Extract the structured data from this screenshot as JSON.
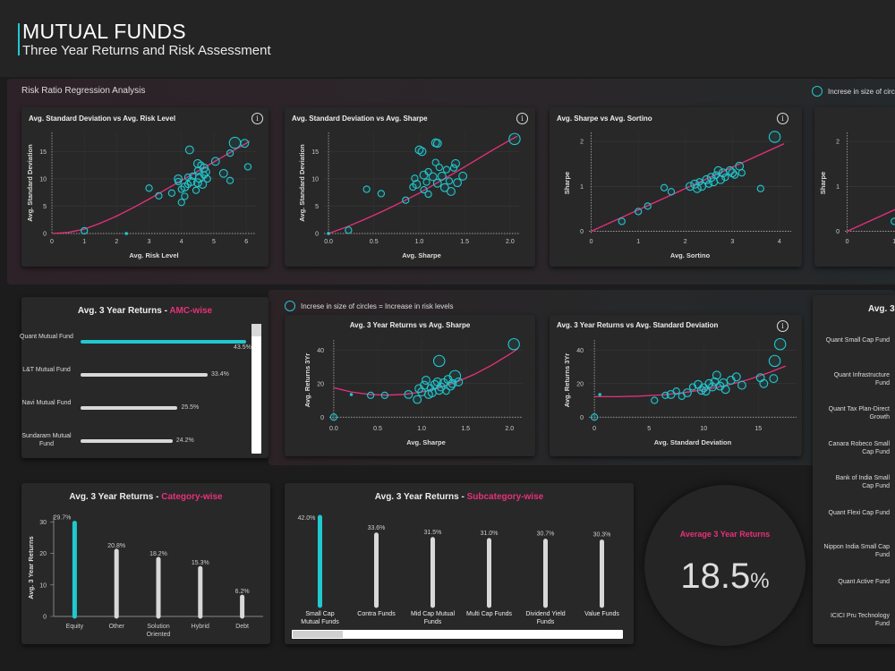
{
  "header": {
    "title": "MUTUAL FUNDS",
    "subtitle": "Three Year Returns and Risk Assessment"
  },
  "section_label": "Risk Ratio Regression Analysis",
  "legend_top": "Increse in size of circles",
  "legend_mid": "Increse in size of circles = Increase in risk levels",
  "colors": {
    "accent": "#20c8d0",
    "pink": "#e8307a",
    "bar": "#d8d8d8",
    "card": "#282828"
  },
  "icons": {
    "info": "info-icon"
  },
  "info_glyph": "i",
  "amc": {
    "title_prefix": "Avg. 3 Year Returns - ",
    "title_suffix": "AMC-wise",
    "rows": [
      {
        "label": "Quant Mutual Fund",
        "value": 43.5,
        "value_label": "43.5%"
      },
      {
        "label": "L&T Mutual Fund",
        "value": 33.4,
        "value_label": "33.4%"
      },
      {
        "label": "Navi Mutual Fund",
        "value": 25.5,
        "value_label": "25.5%"
      },
      {
        "label": "Sundaram Mutual Fund",
        "value": 24.2,
        "value_label": "24.2%"
      }
    ]
  },
  "right_panel": {
    "title": "Avg. 3",
    "rows": [
      "Quant Small Cap Fund",
      "Quant Infrastructure Fund",
      "Quant Tax Plan-Direct Growth",
      "Canara Robeco Small Cap Fund",
      "Bank of India Small Cap Fund",
      "Quant Flexi Cap Fund",
      "Nippon India Small Cap Fund",
      "Quant Active Fund",
      "ICICI Pru Technology Fund"
    ]
  },
  "category": {
    "title_prefix": "Avg. 3 Year Returns - ",
    "title_suffix": "Category-wise"
  },
  "subcategory": {
    "title_prefix": "Avg. 3 Year Returns - ",
    "title_suffix": "Subcategory-wise"
  },
  "kpi": {
    "label": "Average 3 Year Returns",
    "value": "18.5",
    "unit": "%"
  },
  "chart_data": [
    {
      "id": "sd-risk",
      "type": "scatter",
      "title": "Avg. Standard Deviation vs Avg. Risk Level",
      "xlabel": "Avg. Risk Level",
      "ylabel": "Avg. Standard Deviation",
      "xlim": [
        0,
        6.3
      ],
      "ylim": [
        0,
        18.5
      ],
      "xticks": [
        0,
        1,
        2,
        3,
        4,
        5,
        6
      ],
      "yticks": [
        0,
        5,
        10,
        15
      ],
      "points": [
        [
          1,
          0.5,
          1
        ],
        [
          2.3,
          0,
          0
        ],
        [
          3,
          8.3,
          1
        ],
        [
          3.3,
          6.9,
          1
        ],
        [
          3.7,
          7.4,
          1
        ],
        [
          3.9,
          10,
          2
        ],
        [
          3.9,
          9.5,
          1
        ],
        [
          4.0,
          8.1,
          1
        ],
        [
          4.1,
          6.8,
          1
        ],
        [
          4.0,
          5.7,
          1
        ],
        [
          4.1,
          8.5,
          2
        ],
        [
          4.2,
          10.3,
          1
        ],
        [
          4.2,
          9.0,
          1
        ],
        [
          4.3,
          9.5,
          2
        ],
        [
          4.25,
          15.3,
          2
        ],
        [
          4.35,
          10.5,
          1
        ],
        [
          4.45,
          7.9,
          1
        ],
        [
          4.5,
          9.3,
          2
        ],
        [
          4.5,
          11.5,
          1
        ],
        [
          4.55,
          10.1,
          2
        ],
        [
          4.6,
          12.5,
          1
        ],
        [
          4.65,
          9.0,
          2
        ],
        [
          4.7,
          10.7,
          1
        ],
        [
          4.7,
          12.0,
          2
        ],
        [
          4.75,
          11.3,
          2
        ],
        [
          4.8,
          10.0,
          1
        ],
        [
          4.5,
          12.8,
          2
        ],
        [
          5.05,
          13.2,
          2
        ],
        [
          5.3,
          11.0,
          2
        ],
        [
          5.5,
          14.7,
          1
        ],
        [
          5.65,
          16.6,
          3
        ],
        [
          5.95,
          16.5,
          2
        ],
        [
          6.05,
          12.2,
          1
        ],
        [
          5.5,
          9.7,
          1
        ]
      ],
      "fit": [
        [
          0,
          0
        ],
        [
          0.5,
          0.2
        ],
        [
          1,
          0.8
        ],
        [
          1.5,
          1.9
        ],
        [
          2,
          3.2
        ],
        [
          2.5,
          4.7
        ],
        [
          3,
          6.3
        ],
        [
          3.5,
          8.0
        ],
        [
          4,
          9.7
        ],
        [
          4.5,
          11.4
        ],
        [
          5,
          13.1
        ],
        [
          5.5,
          14.8
        ],
        [
          6,
          16.5
        ],
        [
          6.1,
          16.9
        ]
      ]
    },
    {
      "id": "sd-sharpe",
      "type": "scatter",
      "title": "Avg. Standard Deviation vs Avg. Sharpe",
      "xlabel": "Avg. Sharpe",
      "ylabel": "Avg. Standard Deviation",
      "xlim": [
        -0.05,
        2.1
      ],
      "ylim": [
        0,
        18.5
      ],
      "xticks": [
        0,
        0.5,
        1,
        1.5,
        2
      ],
      "xticklabels": [
        "0.0",
        "0.5",
        "1.0",
        "1.5",
        "2.0"
      ],
      "yticks": [
        0,
        5,
        10,
        15
      ],
      "points": [
        [
          0,
          0,
          0
        ],
        [
          0.22,
          0.6,
          1
        ],
        [
          0.42,
          8.1,
          1
        ],
        [
          0.58,
          7.3,
          1
        ],
        [
          0.85,
          6.1,
          1
        ],
        [
          0.93,
          8.5,
          1
        ],
        [
          0.95,
          10.1,
          1
        ],
        [
          0.97,
          9.0,
          2
        ],
        [
          1.0,
          15.3,
          2
        ],
        [
          1.03,
          15.0,
          2
        ],
        [
          1.05,
          8.0,
          1
        ],
        [
          1.05,
          10.7,
          2
        ],
        [
          1.08,
          9.4,
          1
        ],
        [
          1.1,
          11.3,
          1
        ],
        [
          1.1,
          7.2,
          1
        ],
        [
          1.15,
          10.4,
          2
        ],
        [
          1.18,
          13.0,
          1
        ],
        [
          1.18,
          16.6,
          2
        ],
        [
          1.2,
          16.5,
          2
        ],
        [
          1.2,
          9.2,
          2
        ],
        [
          1.22,
          12.1,
          1
        ],
        [
          1.25,
          10.5,
          2
        ],
        [
          1.28,
          8.4,
          2
        ],
        [
          1.3,
          11.7,
          1
        ],
        [
          1.33,
          9.6,
          1
        ],
        [
          1.35,
          7.7,
          2
        ],
        [
          1.38,
          12.0,
          1
        ],
        [
          1.4,
          12.8,
          2
        ],
        [
          1.42,
          9.3,
          2
        ],
        [
          1.48,
          10.5,
          2
        ],
        [
          2.05,
          17.3,
          3
        ]
      ],
      "fit": [
        [
          0,
          0
        ],
        [
          0.2,
          1.2
        ],
        [
          0.4,
          2.6
        ],
        [
          0.6,
          4.1
        ],
        [
          0.8,
          5.7
        ],
        [
          1.0,
          7.4
        ],
        [
          1.2,
          9.3
        ],
        [
          1.4,
          11.2
        ],
        [
          1.6,
          13.2
        ],
        [
          1.8,
          15.2
        ],
        [
          2.0,
          17.1
        ],
        [
          2.08,
          17.8
        ]
      ]
    },
    {
      "id": "sharpe-sortino",
      "type": "scatter",
      "title": "Avg. Sharpe vs Avg. Sortino",
      "xlabel": "Avg. Sortino",
      "ylabel": "Sharpe",
      "xlim": [
        -0.05,
        4.25
      ],
      "ylim": [
        -0.05,
        2.2
      ],
      "xticks": [
        0,
        1,
        2,
        3,
        4
      ],
      "yticks": [
        0,
        1,
        2
      ],
      "points": [
        [
          0.65,
          0.22,
          1
        ],
        [
          1.0,
          0.44,
          1
        ],
        [
          1.2,
          0.56,
          1
        ],
        [
          1.55,
          0.97,
          1
        ],
        [
          1.7,
          0.88,
          1
        ],
        [
          2.1,
          1.0,
          2
        ],
        [
          2.2,
          1.05,
          2
        ],
        [
          2.25,
          0.95,
          2
        ],
        [
          2.3,
          1.1,
          1
        ],
        [
          2.35,
          1.0,
          2
        ],
        [
          2.45,
          1.15,
          2
        ],
        [
          2.5,
          1.05,
          1
        ],
        [
          2.55,
          1.2,
          2
        ],
        [
          2.6,
          1.1,
          2
        ],
        [
          2.65,
          1.25,
          1
        ],
        [
          2.7,
          1.35,
          2
        ],
        [
          2.75,
          1.15,
          2
        ],
        [
          2.8,
          1.3,
          2
        ],
        [
          2.85,
          1.2,
          1
        ],
        [
          2.95,
          1.35,
          2
        ],
        [
          3.0,
          1.3,
          2
        ],
        [
          3.05,
          1.25,
          1
        ],
        [
          3.15,
          1.45,
          2
        ],
        [
          3.2,
          1.3,
          1
        ],
        [
          3.6,
          0.95,
          1
        ],
        [
          3.9,
          2.1,
          3
        ]
      ],
      "fit": [
        [
          0,
          0
        ],
        [
          4.1,
          1.95
        ]
      ]
    },
    {
      "id": "ret-sharpe",
      "type": "scatter",
      "title": "Avg. 3 Year Returns vs Avg. Sharpe",
      "xlabel": "Avg. Sharpe",
      "ylabel": "Avg. Returns 3Yr",
      "xlim": [
        -0.05,
        2.15
      ],
      "ylim": [
        -2,
        46
      ],
      "xticks": [
        0,
        0.5,
        1,
        1.5,
        2
      ],
      "xticklabels": [
        "0.0",
        "0.5",
        "1.0",
        "1.5",
        "2.0"
      ],
      "yticks": [
        0,
        20,
        40
      ],
      "points": [
        [
          0,
          0,
          1
        ],
        [
          0.2,
          13.5,
          0
        ],
        [
          0.42,
          13.0,
          1
        ],
        [
          0.58,
          13.0,
          1
        ],
        [
          0.85,
          13.5,
          2
        ],
        [
          0.95,
          10.5,
          2
        ],
        [
          0.97,
          17.0,
          2
        ],
        [
          1.0,
          15.0,
          2
        ],
        [
          1.03,
          19.0,
          2
        ],
        [
          1.05,
          22.0,
          2
        ],
        [
          1.08,
          13.5,
          2
        ],
        [
          1.1,
          17.5,
          1
        ],
        [
          1.12,
          14.5,
          2
        ],
        [
          1.15,
          19.5,
          2
        ],
        [
          1.18,
          21.0,
          2
        ],
        [
          1.2,
          16.0,
          2
        ],
        [
          1.2,
          33.5,
          3
        ],
        [
          1.22,
          18.0,
          2
        ],
        [
          1.25,
          20.5,
          2
        ],
        [
          1.28,
          15.5,
          1
        ],
        [
          1.3,
          22.5,
          2
        ],
        [
          1.33,
          18.5,
          2
        ],
        [
          1.35,
          20.0,
          2
        ],
        [
          1.38,
          24.5,
          3
        ],
        [
          1.42,
          21.0,
          2
        ],
        [
          2.05,
          43.5,
          3
        ]
      ],
      "fit": [
        [
          0,
          17.5
        ],
        [
          0.2,
          15.0
        ],
        [
          0.4,
          13.6
        ],
        [
          0.6,
          13.1
        ],
        [
          0.8,
          13.6
        ],
        [
          1.0,
          15.0
        ],
        [
          1.2,
          17.5
        ],
        [
          1.4,
          21.0
        ],
        [
          1.6,
          25.5
        ],
        [
          1.8,
          31.0
        ],
        [
          2.0,
          37.4
        ],
        [
          2.1,
          41.0
        ]
      ]
    },
    {
      "id": "ret-sd",
      "type": "scatter",
      "title": "Avg. 3 Year Returns vs Avg. Standard Deviation",
      "xlabel": "Avg. Standard Deviation",
      "ylabel": "Avg. Returns 3Yr",
      "xlim": [
        -0.5,
        18.5
      ],
      "ylim": [
        -2,
        46
      ],
      "xticks": [
        0,
        5,
        10,
        15
      ],
      "yticks": [
        0,
        20,
        40
      ],
      "points": [
        [
          0,
          0,
          1
        ],
        [
          0.5,
          13.5,
          0
        ],
        [
          5.5,
          10,
          1
        ],
        [
          6.5,
          13,
          1
        ],
        [
          7.0,
          13.5,
          2
        ],
        [
          7.5,
          15.5,
          1
        ],
        [
          8,
          12.5,
          1
        ],
        [
          8.5,
          14.5,
          2
        ],
        [
          9.0,
          18.0,
          1
        ],
        [
          9.5,
          19.5,
          2
        ],
        [
          9.8,
          16,
          2
        ],
        [
          10,
          17.5,
          2
        ],
        [
          10.2,
          15.5,
          2
        ],
        [
          10.5,
          20,
          2
        ],
        [
          10.8,
          18,
          2
        ],
        [
          11,
          21,
          2
        ],
        [
          11.2,
          25,
          2
        ],
        [
          11.5,
          18.5,
          2
        ],
        [
          11.8,
          20.5,
          2
        ],
        [
          12,
          16.5,
          2
        ],
        [
          12.5,
          22,
          2
        ],
        [
          13,
          24,
          2
        ],
        [
          13.5,
          19,
          2
        ],
        [
          15.2,
          23.5,
          2
        ],
        [
          15.5,
          20,
          2
        ],
        [
          16.4,
          23,
          2
        ],
        [
          16.5,
          33.5,
          3
        ],
        [
          17,
          43.5,
          3
        ]
      ],
      "fit": [
        [
          0,
          12.2
        ],
        [
          2,
          12.2
        ],
        [
          4,
          12.5
        ],
        [
          6,
          13.2
        ],
        [
          8,
          14.5
        ],
        [
          10,
          16.3
        ],
        [
          12,
          18.8
        ],
        [
          14,
          22.2
        ],
        [
          16,
          26.6
        ],
        [
          17.5,
          30.5
        ]
      ]
    },
    {
      "id": "category",
      "type": "bar",
      "title": "Avg. 3 Year Returns - Category-wise",
      "ylabel": "Avg. 3 Year Returns",
      "ylim": [
        0,
        31
      ],
      "yticks": [
        0,
        10,
        20,
        30
      ],
      "categories": [
        "Equity",
        "Other",
        "Solution Oriented",
        "Hybrid",
        "Debt"
      ],
      "values": [
        29.7,
        20.8,
        18.2,
        15.3,
        6.2
      ],
      "value_labels": [
        "29.7%",
        "20.8%",
        "18.2%",
        "15.3%",
        "6.2%"
      ]
    },
    {
      "id": "subcategory",
      "type": "bar",
      "title": "Avg. 3 Year Returns - Subcategory-wise",
      "ylim": [
        0,
        42
      ],
      "categories": [
        "Small Cap Mutual Funds",
        "Contra Funds",
        "Mid Cap Mutual Funds",
        "Multi Cap Funds",
        "Dividend Yield Funds",
        "Value Funds"
      ],
      "values": [
        42.0,
        33.6,
        31.5,
        31.0,
        30.7,
        30.3
      ],
      "value_labels": [
        "42.0%",
        "33.6%",
        "31.5%",
        "31.0%",
        "30.7%",
        "30.3%"
      ]
    }
  ]
}
